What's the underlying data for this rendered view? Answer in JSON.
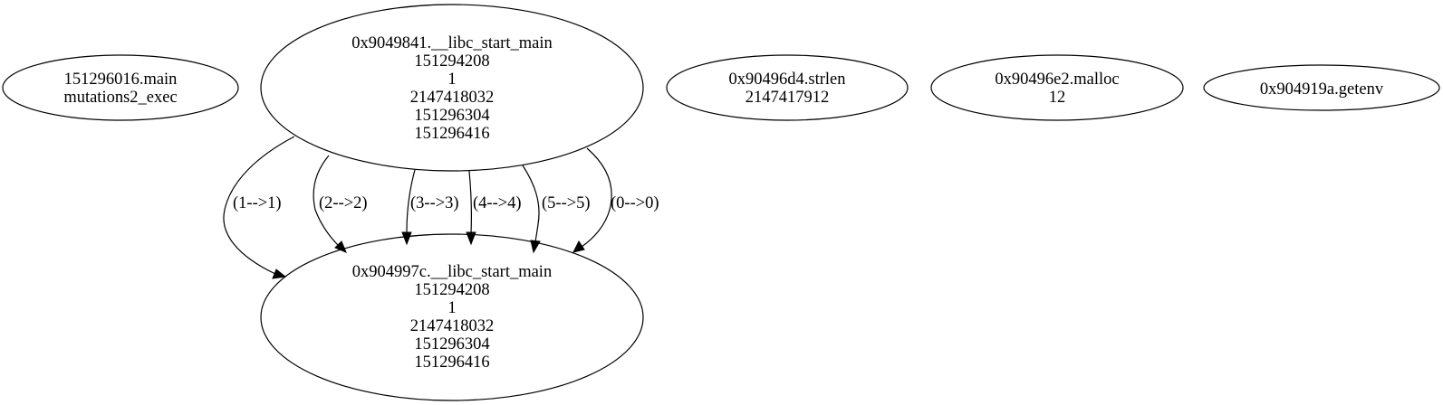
{
  "nodes": [
    {
      "id": "n_main",
      "lines": [
        "151296016.main",
        "mutations2_exec"
      ]
    },
    {
      "id": "n_libc_start_1",
      "lines": [
        "0x9049841.__libc_start_main",
        "151294208",
        "1",
        "2147418032",
        "151296304",
        "151296416"
      ]
    },
    {
      "id": "n_strlen",
      "lines": [
        "0x90496d4.strlen",
        "2147417912"
      ]
    },
    {
      "id": "n_malloc",
      "lines": [
        "0x90496e2.malloc",
        "12"
      ]
    },
    {
      "id": "n_getenv",
      "lines": [
        "0x904919a.getenv"
      ]
    },
    {
      "id": "n_libc_start_2",
      "lines": [
        "0x904997c.__libc_start_main",
        "151294208",
        "1",
        "2147418032",
        "151296304",
        "151296416"
      ]
    }
  ],
  "edges": [
    {
      "from": "n_libc_start_1",
      "to": "n_libc_start_2",
      "label": "(1-->1)"
    },
    {
      "from": "n_libc_start_1",
      "to": "n_libc_start_2",
      "label": "(2-->2)"
    },
    {
      "from": "n_libc_start_1",
      "to": "n_libc_start_2",
      "label": "(3-->3)"
    },
    {
      "from": "n_libc_start_1",
      "to": "n_libc_start_2",
      "label": "(4-->4)"
    },
    {
      "from": "n_libc_start_1",
      "to": "n_libc_start_2",
      "label": "(5-->5)"
    },
    {
      "from": "n_libc_start_1",
      "to": "n_libc_start_2",
      "label": "(0-->0)"
    }
  ]
}
